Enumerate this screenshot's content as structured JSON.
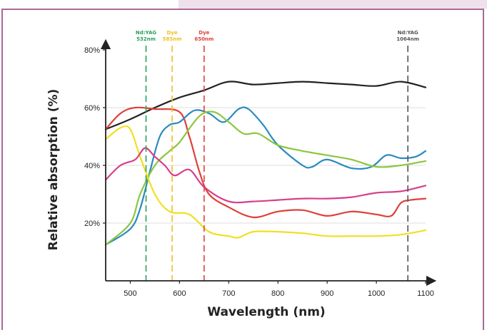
{
  "chart_data": {
    "type": "line",
    "title": "",
    "xlabel": "Wavelength (nm)",
    "ylabel": "Relative absorption (%)",
    "xlim": [
      450,
      1100
    ],
    "ylim": [
      0,
      80
    ],
    "x_ticks": [
      500,
      600,
      700,
      800,
      900,
      1000,
      1100
    ],
    "y_ticks": [
      {
        "value": 20,
        "label": "20%"
      },
      {
        "value": 40,
        "label": "40%"
      },
      {
        "value": 60,
        "label": "60%"
      },
      {
        "value": 80,
        "label": "80%"
      }
    ],
    "grid": "horizontal",
    "markers": [
      {
        "x": 532,
        "line1": "Nd:YAG",
        "line2": "532nm",
        "color": "#2aa05a"
      },
      {
        "x": 585,
        "line1": "Dye",
        "line2": "585nm",
        "color": "#f0c020"
      },
      {
        "x": 650,
        "line1": "Dye",
        "line2": "650nm",
        "color": "#e0403a"
      },
      {
        "x": 1064,
        "line1": "Nd:YAG",
        "line2": "1064nm",
        "color": "#555555"
      }
    ],
    "series": [
      {
        "color": "#222222",
        "points": [
          [
            450,
            52.5
          ],
          [
            500,
            56
          ],
          [
            550,
            60
          ],
          [
            600,
            63.5
          ],
          [
            650,
            66
          ],
          [
            700,
            69
          ],
          [
            750,
            68
          ],
          [
            800,
            68.5
          ],
          [
            850,
            69
          ],
          [
            900,
            68.5
          ],
          [
            950,
            68
          ],
          [
            1000,
            67.5
          ],
          [
            1050,
            69
          ],
          [
            1100,
            67
          ]
        ]
      },
      {
        "color": "#e0403a",
        "points": [
          [
            450,
            52.5
          ],
          [
            480,
            58
          ],
          [
            510,
            60
          ],
          [
            550,
            59.5
          ],
          [
            600,
            58.5
          ],
          [
            620,
            50
          ],
          [
            640,
            38
          ],
          [
            660,
            30
          ],
          [
            700,
            25.5
          ],
          [
            750,
            22
          ],
          [
            800,
            24
          ],
          [
            850,
            24.5
          ],
          [
            900,
            22.5
          ],
          [
            950,
            24
          ],
          [
            1000,
            23
          ],
          [
            1030,
            22.5
          ],
          [
            1050,
            27
          ],
          [
            1070,
            28
          ],
          [
            1100,
            28.5
          ]
        ]
      },
      {
        "color": "#2a8ac0",
        "points": [
          [
            450,
            12.5
          ],
          [
            500,
            18
          ],
          [
            520,
            25
          ],
          [
            540,
            38
          ],
          [
            560,
            50
          ],
          [
            580,
            54
          ],
          [
            600,
            55
          ],
          [
            630,
            59
          ],
          [
            660,
            58
          ],
          [
            690,
            55
          ],
          [
            720,
            59.5
          ],
          [
            740,
            59.5
          ],
          [
            770,
            54
          ],
          [
            800,
            47
          ],
          [
            850,
            40
          ],
          [
            870,
            39.5
          ],
          [
            900,
            42
          ],
          [
            950,
            39
          ],
          [
            990,
            39.5
          ],
          [
            1020,
            43.5
          ],
          [
            1050,
            42.5
          ],
          [
            1080,
            43
          ],
          [
            1100,
            45
          ]
        ]
      },
      {
        "color": "#8cc63e",
        "points": [
          [
            450,
            12.5
          ],
          [
            500,
            20
          ],
          [
            520,
            30
          ],
          [
            550,
            40
          ],
          [
            580,
            45
          ],
          [
            600,
            48
          ],
          [
            640,
            57
          ],
          [
            670,
            58.5
          ],
          [
            700,
            55
          ],
          [
            730,
            51
          ],
          [
            760,
            51
          ],
          [
            800,
            47
          ],
          [
            850,
            45
          ],
          [
            900,
            43.5
          ],
          [
            950,
            42
          ],
          [
            1000,
            39.5
          ],
          [
            1050,
            40
          ],
          [
            1100,
            41.5
          ]
        ]
      },
      {
        "color": "#f0e020",
        "points": [
          [
            450,
            49
          ],
          [
            480,
            53
          ],
          [
            500,
            52.5
          ],
          [
            520,
            43
          ],
          [
            550,
            30
          ],
          [
            580,
            24
          ],
          [
            620,
            23
          ],
          [
            660,
            17
          ],
          [
            700,
            15.5
          ],
          [
            720,
            15
          ],
          [
            750,
            17
          ],
          [
            800,
            17
          ],
          [
            850,
            16.5
          ],
          [
            900,
            15.5
          ],
          [
            950,
            15.5
          ],
          [
            1000,
            15.5
          ],
          [
            1050,
            16
          ],
          [
            1100,
            17.5
          ]
        ]
      },
      {
        "color": "#d63f8c",
        "points": [
          [
            450,
            35
          ],
          [
            480,
            40
          ],
          [
            510,
            42
          ],
          [
            530,
            46
          ],
          [
            550,
            43
          ],
          [
            570,
            40
          ],
          [
            590,
            36.5
          ],
          [
            620,
            38.5
          ],
          [
            650,
            32.5
          ],
          [
            700,
            27.5
          ],
          [
            750,
            27.5
          ],
          [
            800,
            28
          ],
          [
            850,
            28.5
          ],
          [
            900,
            28.5
          ],
          [
            950,
            29
          ],
          [
            1000,
            30.5
          ],
          [
            1050,
            31
          ],
          [
            1100,
            33
          ]
        ]
      }
    ]
  }
}
